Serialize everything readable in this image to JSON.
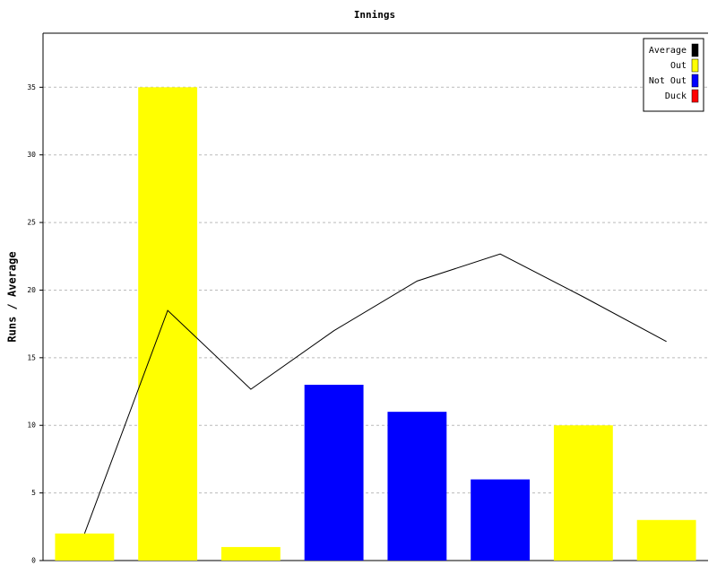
{
  "chart_data": {
    "type": "bar",
    "title": "Innings",
    "ylabel": "Runs / Average",
    "categories": [
      null,
      null,
      null,
      null,
      null,
      null,
      null,
      null
    ],
    "series": [
      {
        "name": "Average",
        "type": "line",
        "color": "#000000",
        "values": [
          2,
          18.5,
          12.67,
          17,
          20.67,
          22.67,
          19.5,
          16.2
        ]
      },
      {
        "name": "Out",
        "color": "#ffff00",
        "values": [
          2,
          35,
          1,
          null,
          null,
          null,
          10,
          3
        ]
      },
      {
        "name": "Not Out",
        "color": "#0000ff",
        "values": [
          null,
          null,
          null,
          13,
          11,
          6,
          null,
          null
        ]
      },
      {
        "name": "Duck",
        "color": "#ff0000",
        "values": [
          null,
          null,
          null,
          null,
          null,
          null,
          null,
          null
        ]
      }
    ],
    "ylim": [
      0,
      39
    ],
    "yticks": [
      0,
      5,
      10,
      15,
      20,
      25,
      30,
      35
    ],
    "grid": true,
    "legend": "top-right"
  }
}
